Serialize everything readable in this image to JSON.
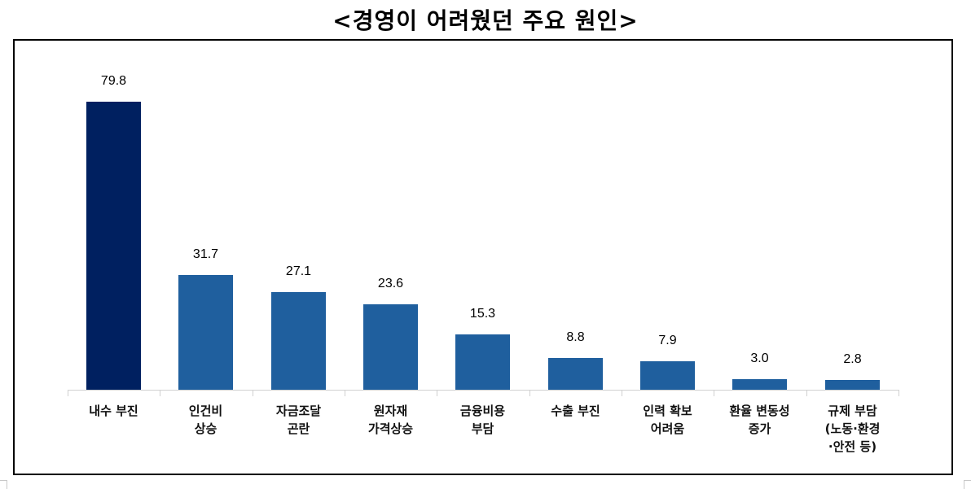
{
  "title": "<경영이 어려웠던 주요 원인>",
  "colors": {
    "highlight_bar": "#002060",
    "bar": "#1F5F9E",
    "axis": "#D0D0D0",
    "frame": "#000000"
  },
  "chart_data": {
    "type": "bar",
    "title": "<경영이 어려웠던 주요 원인>",
    "xlabel": "",
    "ylabel": "",
    "categories": [
      "내수 부진",
      "인건비 상승",
      "자금조달 곤란",
      "원자재 가격상승",
      "금융비용 부담",
      "수출 부진",
      "인력 확보 어려움",
      "환율 변동성 증가",
      "규제 부담 (노동·환경·안전 등)"
    ],
    "values": [
      79.8,
      31.7,
      27.1,
      23.6,
      15.3,
      8.8,
      7.9,
      3.0,
      2.8
    ],
    "value_labels": [
      "79.8",
      "31.7",
      "27.1",
      "23.6",
      "15.3",
      "8.8",
      "7.9",
      "3.0",
      "2.8"
    ],
    "category_labels": [
      "내수 부진",
      "인건비\n상승",
      "자금조달\n곤란",
      "원자재\n가격상승",
      "금융비용\n부담",
      "수출 부진",
      "인력 확보\n어려움",
      "환율 변동성\n증가",
      "규제 부담\n(노동·환경\n·안전 등)"
    ],
    "highlighted_index": 0,
    "ylim": [
      0,
      80
    ],
    "grid": false,
    "legend": null,
    "data_labels": true
  }
}
